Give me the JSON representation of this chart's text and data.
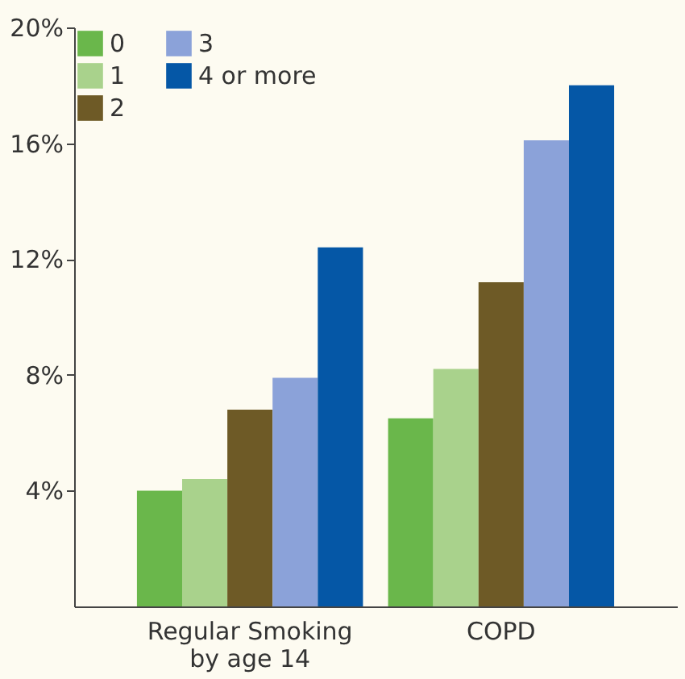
{
  "chart_data": {
    "type": "bar",
    "categories": [
      "Regular Smoking\nby age 14",
      "COPD"
    ],
    "series": [
      {
        "name": "0",
        "color": "#6ab74b",
        "values": [
          4.0,
          6.5
        ]
      },
      {
        "name": "1",
        "color": "#a9d28c",
        "values": [
          4.4,
          8.2
        ]
      },
      {
        "name": "2",
        "color": "#6e5a26",
        "values": [
          6.8,
          11.2
        ]
      },
      {
        "name": "3",
        "color": "#8ba2d9",
        "values": [
          7.9,
          16.1
        ]
      },
      {
        "name": "4 or more",
        "color": "#0557a6",
        "values": [
          12.4,
          18.0
        ]
      }
    ],
    "ylim": [
      0,
      20
    ],
    "yticks": [
      {
        "value": 4,
        "label": "4%"
      },
      {
        "value": 8,
        "label": "8%"
      },
      {
        "value": 12,
        "label": "12%"
      },
      {
        "value": 16,
        "label": "16%"
      },
      {
        "value": 20,
        "label": "20%"
      }
    ],
    "grid": false,
    "legend": "top left"
  }
}
